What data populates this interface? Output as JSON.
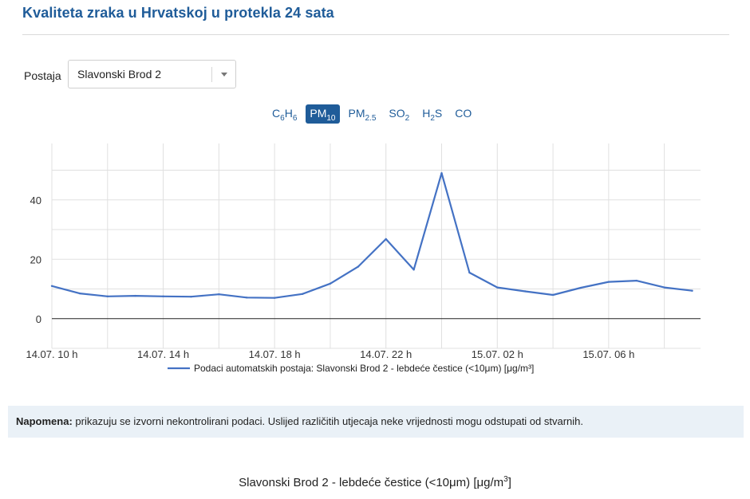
{
  "page": {
    "title": "Kvaliteta zraka u Hrvatskoj u protekla 24 sata"
  },
  "station": {
    "label": "Postaja",
    "selected": "Slavonski Brod 2"
  },
  "pollutant_tabs": [
    {
      "base": "C",
      "sub": "6",
      "base2": "H",
      "sub2": "6",
      "active": false,
      "name": "c6h6"
    },
    {
      "base": "PM",
      "sub": "10",
      "active": true,
      "name": "pm10"
    },
    {
      "base": "PM",
      "sub": "2.5",
      "active": false,
      "name": "pm25"
    },
    {
      "base": "SO",
      "sub": "2",
      "active": false,
      "name": "so2"
    },
    {
      "base": "H",
      "sub": "2",
      "base2": "S",
      "active": false,
      "name": "h2s"
    },
    {
      "base": "CO",
      "active": false,
      "name": "co"
    }
  ],
  "chart_data": {
    "type": "line",
    "x_tick_labels": [
      "14.07. 10 h",
      "14.07. 14 h",
      "14.07. 18 h",
      "14.07. 22 h",
      "15.07. 02 h",
      "15.07. 06 h"
    ],
    "x_hours": [
      10,
      11,
      12,
      13,
      14,
      15,
      16,
      17,
      18,
      19,
      20,
      21,
      22,
      23,
      24,
      25,
      26,
      27,
      28,
      29,
      30,
      31,
      32,
      33
    ],
    "y_ticks": [
      0,
      20,
      40
    ],
    "ylim": [
      -10,
      59
    ],
    "series": [
      {
        "name": "Podaci automatskih postaja: Slavonski Brod 2 - lebdeće čestice (<10μm) [μg/m³]",
        "color": "#4472c4",
        "values": [
          11,
          8.5,
          7.5,
          7.7,
          7.5,
          7.4,
          8.2,
          7.1,
          7,
          8.3,
          11.8,
          17.5,
          26.8,
          16.5,
          49,
          15.5,
          10.5,
          9.2,
          8,
          10.4,
          12.4,
          12.8,
          10.5,
          9.4
        ]
      }
    ]
  },
  "note": {
    "label": "Napomena:",
    "text": " prikazuju se izvorni nekontrolirani podaci. Uslijed različitih utjecaja neke vrijednosti mogu odstupati od stvarnih."
  },
  "subtitle": {
    "text": "Slavonski Brod 2 - lebdeće čestice (<10μm) [μg/m",
    "sup": "3",
    "end": "]"
  }
}
